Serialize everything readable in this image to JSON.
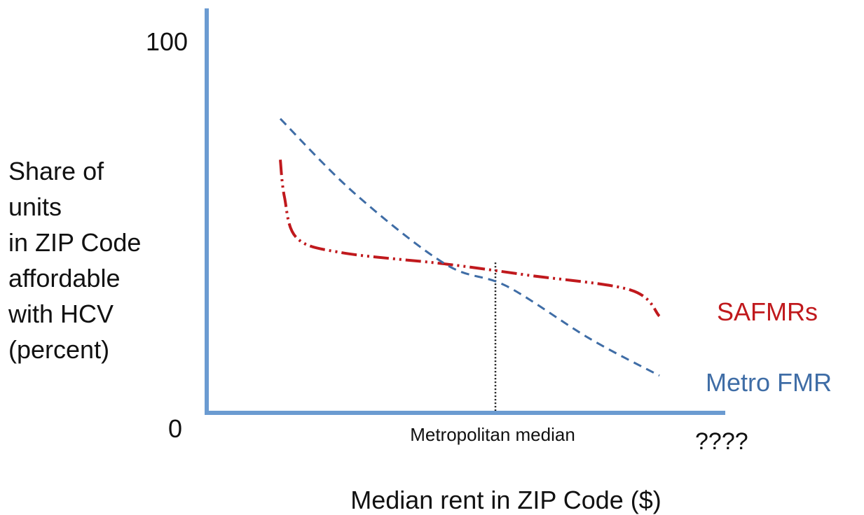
{
  "chart_data": {
    "type": "line",
    "title": "",
    "xlabel": "Median rent in ZIP Code ($)",
    "ylabel_lines": [
      "Share of",
      "units",
      "in ZIP Code",
      "affordable",
      "with HCV",
      "(percent)"
    ],
    "y_ticks": [
      "100",
      "0"
    ],
    "ylim": [
      0,
      100
    ],
    "x_tick_labels": {
      "median": "Metropolitan median",
      "end": "????"
    },
    "reference_line": {
      "label": "Metropolitan median",
      "style": "dotted"
    },
    "grid": false,
    "legend": "inline-right",
    "series": [
      {
        "name": "SAFMRs",
        "color": "#c0191d",
        "style": "dash-dot-dot",
        "points": [
          [
            0.0,
            68
          ],
          [
            0.01,
            58
          ],
          [
            0.04,
            47
          ],
          [
            0.15,
            43
          ],
          [
            0.4,
            40
          ],
          [
            0.6,
            37
          ],
          [
            0.85,
            33
          ],
          [
            0.92,
            26
          ]
        ]
      },
      {
        "name": "Metro FMR",
        "color": "#3f6da6",
        "style": "dashed",
        "points": [
          [
            0.0,
            79
          ],
          [
            0.18,
            59
          ],
          [
            0.4,
            40
          ],
          [
            0.55,
            34
          ],
          [
            0.75,
            20
          ],
          [
            0.92,
            10
          ]
        ]
      }
    ],
    "colors": {
      "axis": "#6b9bd1",
      "text": "#111111"
    }
  }
}
